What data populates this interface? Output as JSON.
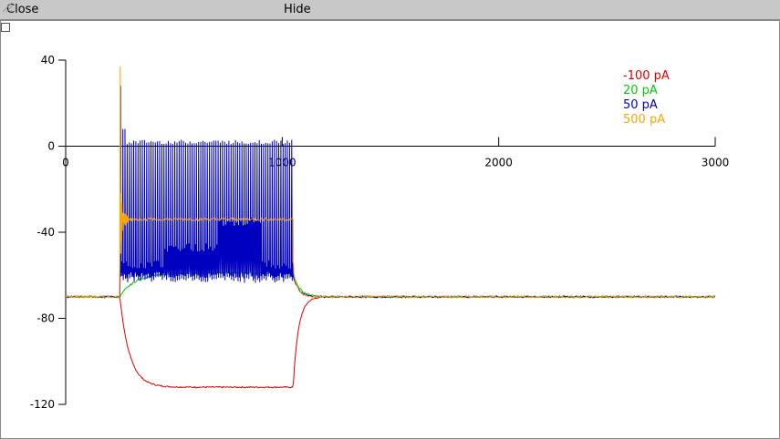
{
  "menu": {
    "close_label": "Close",
    "hide_label": "Hide"
  },
  "chart_data": {
    "type": "line",
    "xlim": [
      0,
      3000
    ],
    "ylim": [
      -120,
      40
    ],
    "xticks": [
      "0",
      "1000",
      "2000",
      "3000"
    ],
    "yticks": [
      "40",
      "0",
      "-40",
      "-80",
      "-120"
    ],
    "legend_position": "top-right",
    "grid": false,
    "stimulus": {
      "start": 250,
      "end": 1050
    },
    "series": [
      {
        "name": "-100 pA",
        "color": "#e00000",
        "resting": -70,
        "steady": -112,
        "spikes": []
      },
      {
        "name": "20 pA",
        "color": "#00cc00",
        "resting": -70,
        "steady": -59,
        "spikes": []
      },
      {
        "name": "50 pA",
        "color": "#0000c0",
        "resting": -70,
        "steady": -60,
        "spike_peak": 2,
        "spike_interval": 10
      },
      {
        "name": "500 pA",
        "color": "#ffa500",
        "resting": -70,
        "steady": -34,
        "initial_peak": 37
      }
    ]
  }
}
